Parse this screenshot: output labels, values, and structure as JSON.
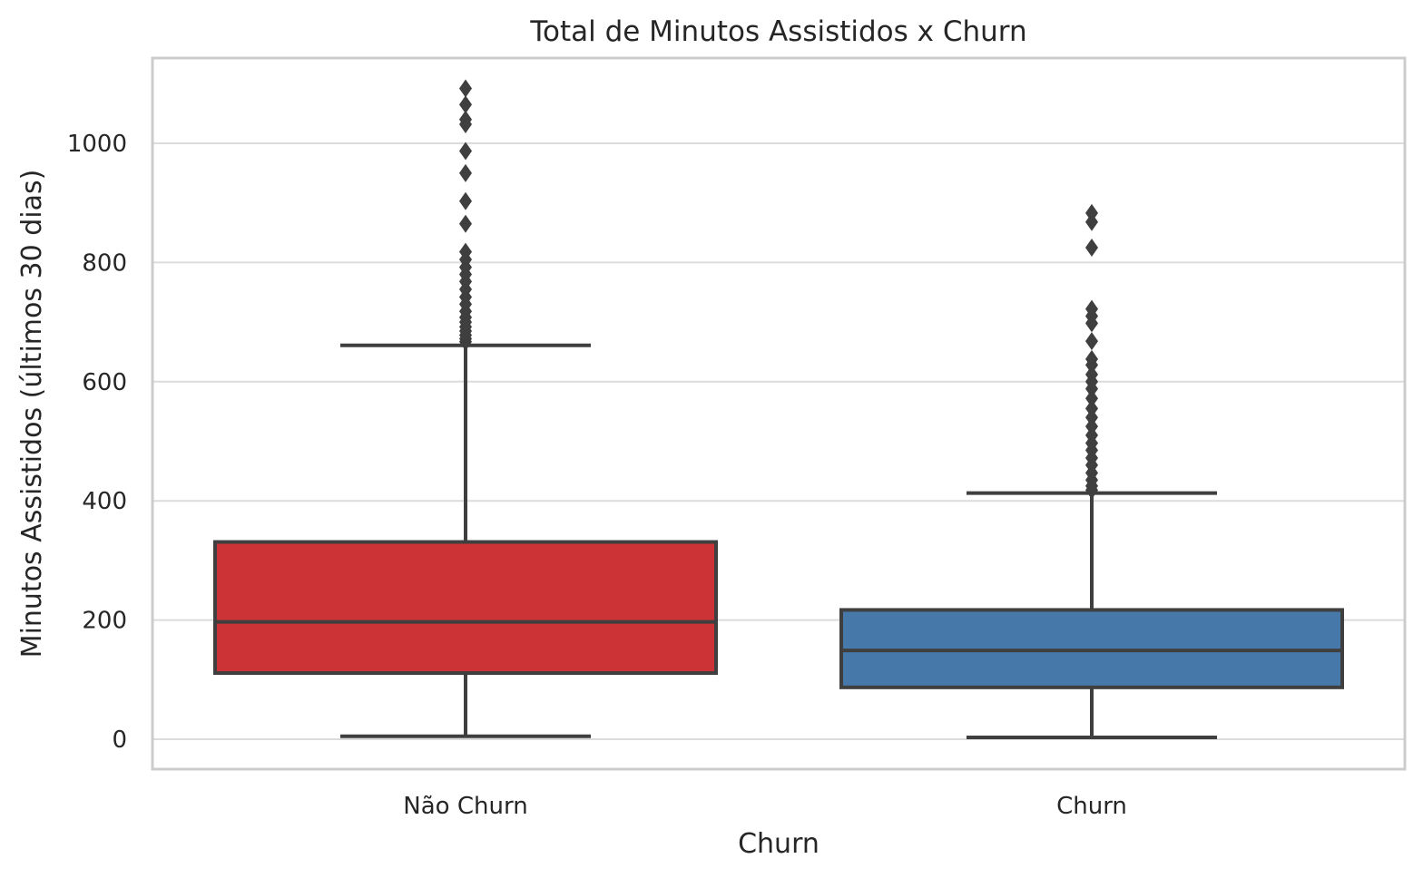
{
  "chart_data": {
    "type": "box",
    "title": "Total de Minutos Assistidos x Churn",
    "xlabel": "Churn",
    "ylabel": "Minutos Assistidos (últimos 30 dias)",
    "ylim": [
      -55,
      1150
    ],
    "yticks": [
      0,
      200,
      400,
      600,
      800,
      1000
    ],
    "grid": true,
    "categories": [
      "Não Churn",
      "Churn"
    ],
    "series": [
      {
        "category": "Não Churn",
        "color": "#cc3336",
        "whisker_low": 5,
        "q1": 111,
        "median": 197,
        "q3": 331,
        "whisker_high": 661,
        "outliers": [
          667,
          672,
          678,
          685,
          692,
          700,
          708,
          718,
          730,
          742,
          755,
          768,
          780,
          792,
          805,
          818,
          865,
          903,
          950,
          987,
          1032,
          1040,
          1065,
          1092
        ]
      },
      {
        "category": "Churn",
        "color": "#4679a9",
        "whisker_low": 3,
        "q1": 87,
        "median": 149,
        "q3": 217,
        "whisker_high": 413,
        "outliers": [
          418,
          425,
          435,
          447,
          460,
          472,
          485,
          497,
          510,
          525,
          540,
          555,
          572,
          588,
          600,
          612,
          628,
          638,
          668,
          698,
          710,
          722,
          825,
          868,
          883
        ]
      }
    ]
  }
}
